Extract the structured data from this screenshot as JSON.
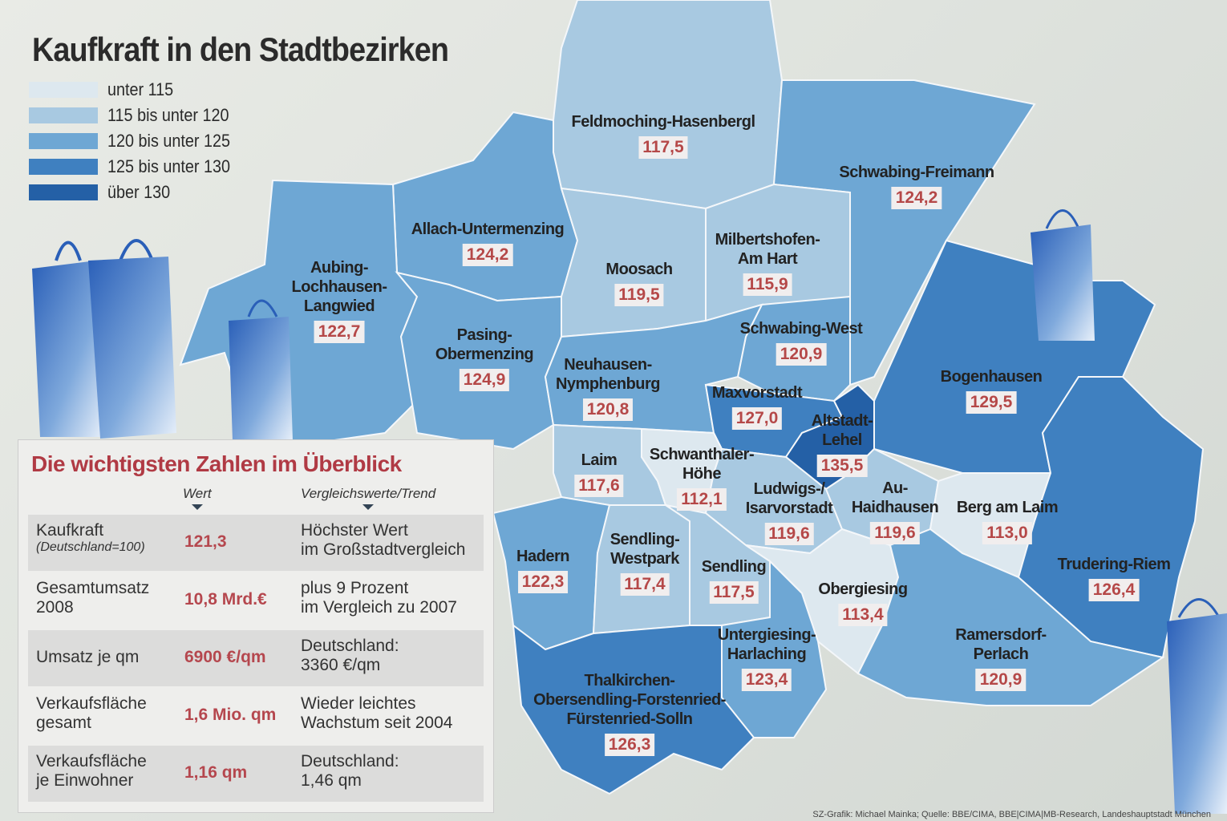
{
  "title": "Kaufkraft in den Stadtbezirken",
  "legend": [
    {
      "label": "unter 115",
      "color": "#dde8ef"
    },
    {
      "label": "115 bis unter 120",
      "color": "#a8c9e1"
    },
    {
      "label": "120 bis unter 125",
      "color": "#6ea7d4"
    },
    {
      "label": "125 bis unter 130",
      "color": "#3f80c0"
    },
    {
      "label": "über 130",
      "color": "#2460a6"
    }
  ],
  "districts": [
    {
      "name": "Feldmoching-Hasenbergl",
      "value": "117,5"
    },
    {
      "name": "Schwabing-Freimann",
      "value": "124,2"
    },
    {
      "name": "Allach-Untermenzing",
      "value": "124,2"
    },
    {
      "name": "Milbertshofen-\nAm Hart",
      "value": "115,9"
    },
    {
      "name": "Moosach",
      "value": "119,5"
    },
    {
      "name": "Aubing-\nLochhausen-\nLangwied",
      "value": "122,7"
    },
    {
      "name": "Pasing-\nObermenzing",
      "value": "124,9"
    },
    {
      "name": "Schwabing-West",
      "value": "120,9"
    },
    {
      "name": "Neuhausen-\nNymphenburg",
      "value": "120,8"
    },
    {
      "name": "Bogenhausen",
      "value": "129,5"
    },
    {
      "name": "Maxvorstadt",
      "value": "127,0"
    },
    {
      "name": "Altstadt-\nLehel",
      "value": "135,5"
    },
    {
      "name": "Laim",
      "value": "117,6"
    },
    {
      "name": "Schwanthaler-\nHöhe",
      "value": "112,1"
    },
    {
      "name": "Ludwigs-/\nIsarvorstadt",
      "value": "119,6"
    },
    {
      "name": "Au-\nHaidhausen",
      "value": "119,6"
    },
    {
      "name": "Berg am Laim",
      "value": "113,0"
    },
    {
      "name": "Hadern",
      "value": "122,3"
    },
    {
      "name": "Sendling-\nWestpark",
      "value": "117,4"
    },
    {
      "name": "Sendling",
      "value": "117,5"
    },
    {
      "name": "Obergiesing",
      "value": "113,4"
    },
    {
      "name": "Trudering-Riem",
      "value": "126,4"
    },
    {
      "name": "Untergiesing-\nHarlaching",
      "value": "123,4"
    },
    {
      "name": "Ramersdorf-\nPerlach",
      "value": "120,9"
    },
    {
      "name": "Thalkirchen-\nObersendling-Forstenried-\nFürstenried-Solln",
      "value": "126,3"
    }
  ],
  "summary": {
    "title": "Die wichtigsten Zahlen im Überblick",
    "col_value": "Wert",
    "col_compare": "Vergleichswerte/Trend",
    "rows": [
      {
        "label": "Kaufkraft",
        "sublabel": "(Deutschland=100)",
        "value": "121,3",
        "compare": "Höchster Wert\nim Großstadtvergleich"
      },
      {
        "label": "Gesamtumsatz\n2008",
        "value": "10,8 Mrd.€",
        "compare": "plus 9 Prozent\nim Vergleich zu 2007"
      },
      {
        "label": "Umsatz je qm",
        "value": "6900 €/qm",
        "compare": "Deutschland:\n3360 €/qm"
      },
      {
        "label": "Verkaufsfläche\ngesamt",
        "value": "1,6 Mio. qm",
        "compare": "Wieder leichtes\nWachstum seit 2004"
      },
      {
        "label": "Verkaufsfläche\nje Einwohner",
        "value": "1,16 qm",
        "compare": "Deutschland:\n1,46 qm"
      }
    ]
  },
  "source": "SZ-Grafik: Michael Mainka; Quelle: BBE/CIMA, BBE|CIMA|MB-Research, Landeshauptstadt München"
}
